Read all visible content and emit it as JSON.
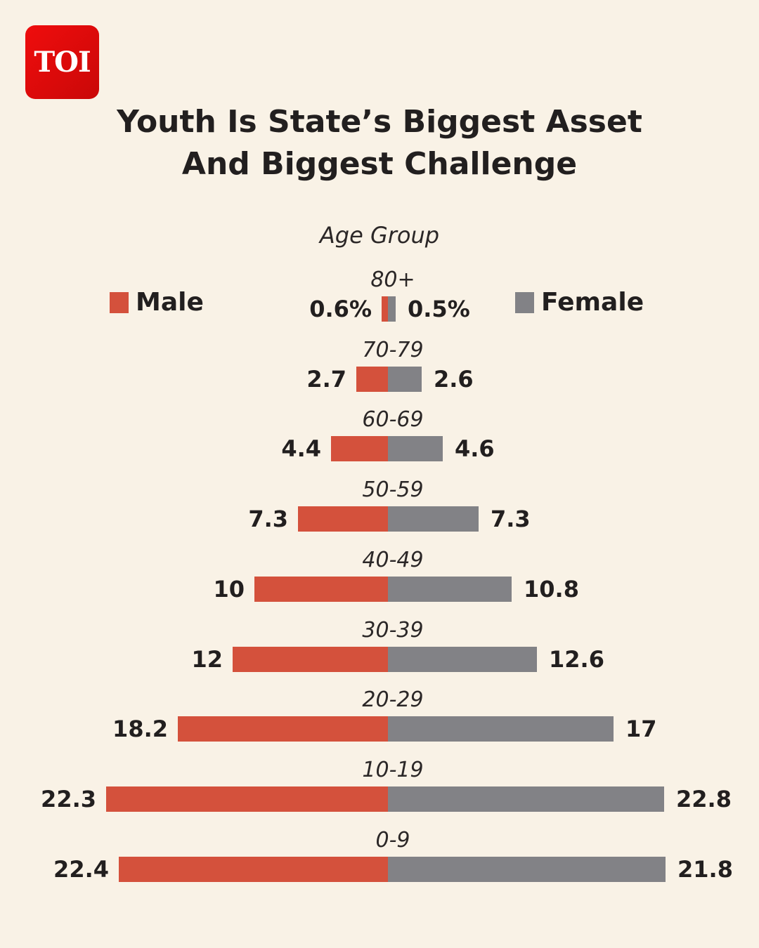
{
  "logo": {
    "text": "TOI"
  },
  "title_lines": [
    "Youth Is State’s Biggest Asset",
    "And Biggest Challenge"
  ],
  "colors": {
    "male": "#d4513c",
    "female": "#828286",
    "background": "#f9f2e6",
    "logo": "#e50b0b"
  },
  "chart_data": {
    "type": "bar",
    "orientation": "horizontal-diverging",
    "title": "Youth Is State’s Biggest Asset And Biggest Challenge",
    "axis_title": "Age Group",
    "unit": "%",
    "legend": [
      {
        "name": "Male",
        "position": "left"
      },
      {
        "name": "Female",
        "position": "right"
      }
    ],
    "categories": [
      "80+",
      "70-79",
      "60-69",
      "50-59",
      "40-49",
      "30-39",
      "20-29",
      "10-19",
      "0-9"
    ],
    "series": [
      {
        "name": "Male",
        "values": [
          0.6,
          2.7,
          4.4,
          7.3,
          10,
          12,
          18.2,
          22.3,
          22.4
        ],
        "labels": [
          "0.6%",
          "2.7",
          "4.4",
          "7.3",
          "10",
          "12",
          "18.2",
          "22.3",
          "22.4"
        ]
      },
      {
        "name": "Female",
        "values": [
          0.5,
          2.6,
          4.6,
          7.3,
          10.8,
          12.6,
          17,
          22.8,
          21.8
        ],
        "labels": [
          "0.5%",
          "2.6",
          "4.6",
          "7.3",
          "10.8",
          "12.6",
          "17",
          "22.8",
          "21.8"
        ]
      }
    ]
  }
}
